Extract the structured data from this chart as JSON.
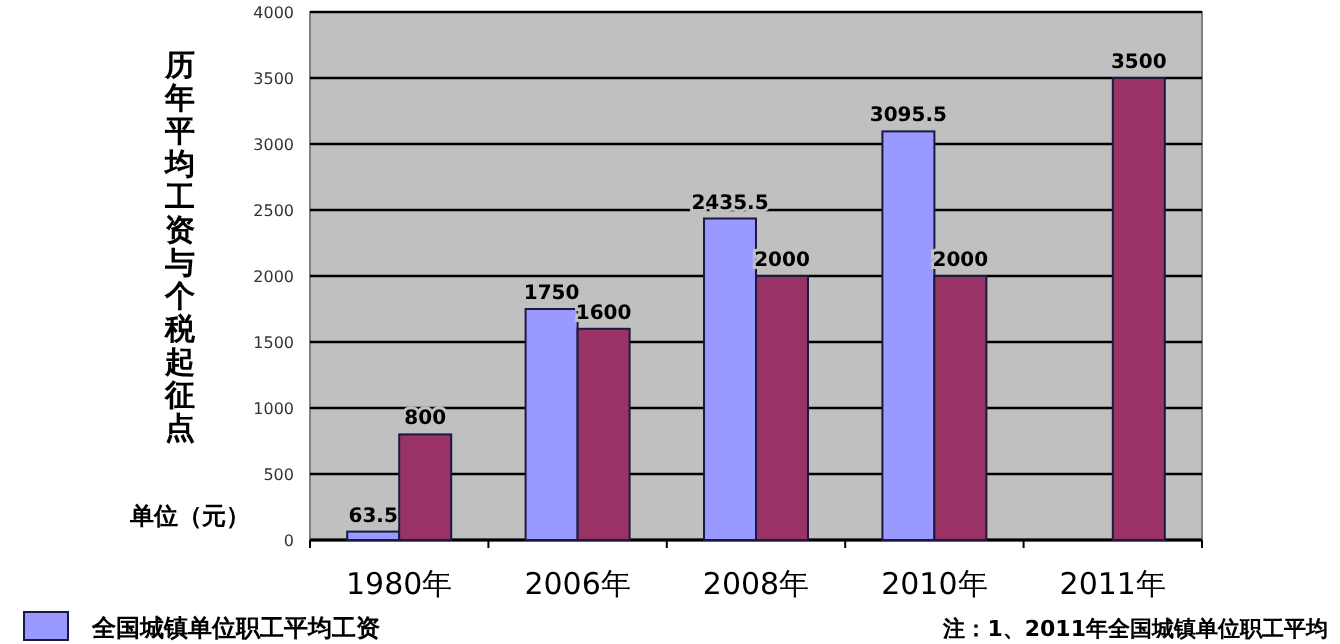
{
  "chart_data": {
    "type": "bar",
    "ylabel": "历年平均工资与个税起征点",
    "categories": [
      "1980年",
      "2006年",
      "2008年",
      "2010年",
      "2011年"
    ],
    "series": [
      {
        "name": "全国城镇单位职工平均工资",
        "color": "#9999ff",
        "values": [
          63.5,
          1750,
          2435.5,
          3095.5,
          null
        ]
      },
      {
        "color": "#993366",
        "values": [
          800,
          1600,
          2000,
          2000,
          3500
        ]
      }
    ],
    "ylim": [
      0,
      4000
    ],
    "yticks": [
      0,
      500,
      1000,
      1500,
      2000,
      2500,
      3000,
      3500,
      4000
    ],
    "grid": "y",
    "legend": "bottom left",
    "data_labels": true,
    "annotations": [
      "单位（元）",
      "注：1、2011年全国城镇单位职工平均"
    ]
  }
}
